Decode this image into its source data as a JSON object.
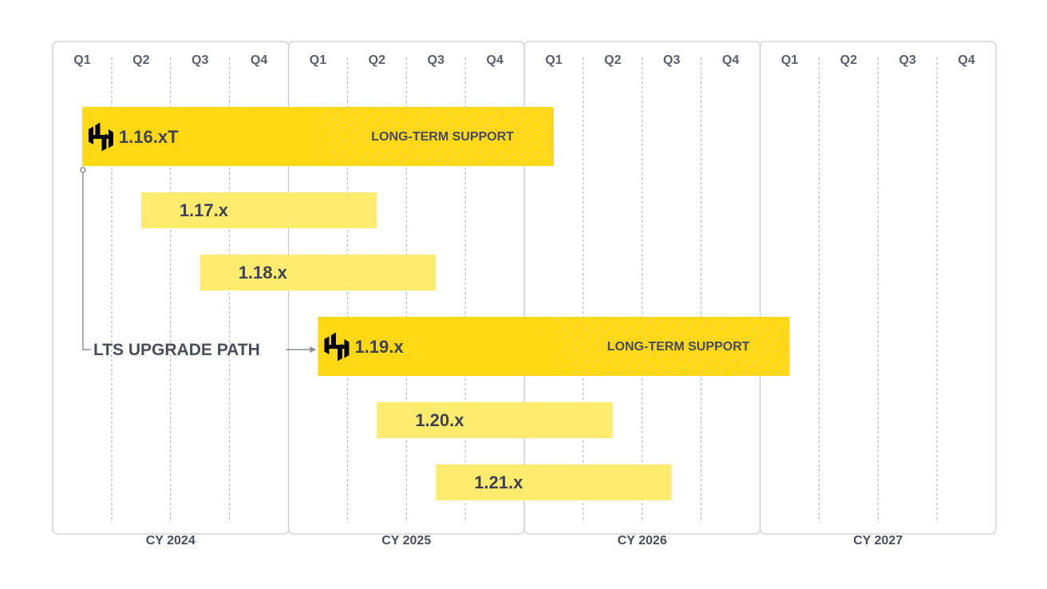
{
  "years": [
    {
      "label": "CY 2024",
      "quarters": [
        "Q1",
        "Q2",
        "Q3",
        "Q4"
      ]
    },
    {
      "label": "CY 2025",
      "quarters": [
        "Q1",
        "Q2",
        "Q3",
        "Q4"
      ]
    },
    {
      "label": "CY 2026",
      "quarters": [
        "Q1",
        "Q2",
        "Q3",
        "Q4"
      ]
    },
    {
      "label": "CY 2027",
      "quarters": [
        "Q1",
        "Q2",
        "Q3",
        "Q4"
      ]
    }
  ],
  "releases": [
    {
      "label": "1.16.xT",
      "start": "2024-Q1",
      "end": "2026-Q1",
      "lts": true,
      "lts_label": "LONG-TERM SUPPORT",
      "logo": "hashicorp-logo-icon"
    },
    {
      "label": "1.17.x",
      "start": "2024-Q2",
      "end": "2025-Q2",
      "lts": false
    },
    {
      "label": "1.18.x",
      "start": "2024-Q3",
      "end": "2025-Q3",
      "lts": false
    },
    {
      "label": "1.19.x",
      "start": "2025-Q1",
      "end": "2027-Q1",
      "lts": true,
      "lts_label": "LONG-TERM SUPPORT",
      "logo": "hashicorp-logo-icon"
    },
    {
      "label": "1.20.x",
      "start": "2025-Q2",
      "end": "2026-Q2",
      "lts": false
    },
    {
      "label": "1.21.x",
      "start": "2025-Q3",
      "end": "2026-Q3",
      "lts": false
    }
  ],
  "upgrade_path": {
    "label": "LTS UPGRADE PATH",
    "from": "1.16.xT",
    "to": "1.19.x"
  },
  "colors": {
    "lts_bar": "#FFD814",
    "standard_bar": "#FFEB6E",
    "panel_border": "#C9C9CF",
    "grid_line": "#A0A0A8",
    "text": "#4A4D5E",
    "connector": "#8C8E9A"
  }
}
